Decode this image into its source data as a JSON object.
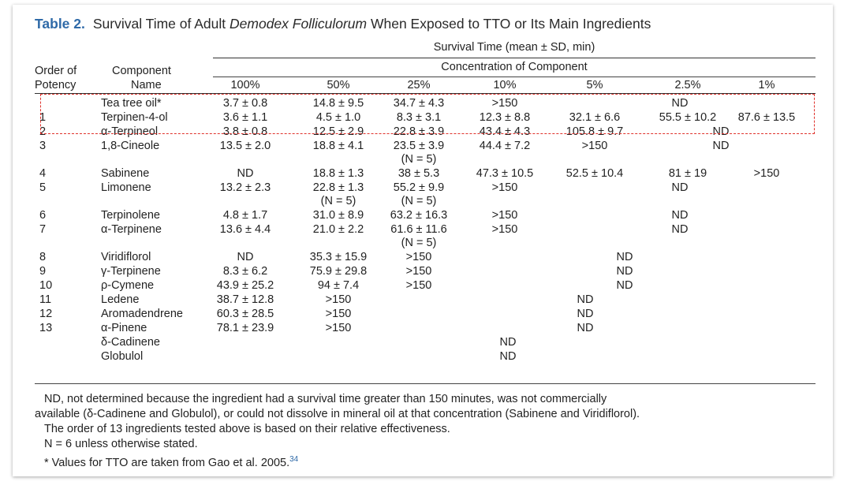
{
  "table": {
    "label": "Table 2.",
    "title_pre": "Survival Time of Adult ",
    "title_italic": "Demodex Folliculorum",
    "title_post": " When Exposed to TTO or Its Main Ingredients",
    "header_survival": "Survival Time (mean ± SD, min)",
    "header_concentration": "Concentration of Component",
    "header_order_line1": "Order of",
    "header_order_line2": "Potency",
    "header_component_line1": "Component",
    "header_component_line2": "Name",
    "concentrations": [
      "100%",
      "50%",
      "25%",
      "10%",
      "5%",
      "2.5%",
      "1%"
    ]
  },
  "rows": [
    {
      "order": "",
      "name": "Tea tree oil*",
      "c100": "3.7 ± 0.8",
      "c50": "14.8 ± 9.5",
      "c25": "34.7 ± 4.3",
      "c10": ">150",
      "c5": "",
      "c2_5": "",
      "c1": "",
      "nd": "ND"
    },
    {
      "order": "1",
      "name": "Terpinen-4-ol",
      "c100": "3.6 ± 1.1",
      "c50": "4.5 ± 1.0",
      "c25": "8.3 ± 3.1",
      "c10": "12.3 ± 8.8",
      "c5": "32.1 ± 6.6",
      "c2_5": "55.5 ± 10.2",
      "c1": "87.6 ± 13.5",
      "nd": ""
    },
    {
      "order": "2",
      "name": "α-Terpineol",
      "c100": "3.8 ± 0.8",
      "c50": "12.5 ± 2.9",
      "c25": "22.8 ± 3.9",
      "c10": "43.4 ± 4.3",
      "c5": "105.8 ± 9.7",
      "c2_5": "",
      "c1": "",
      "nd": "ND"
    },
    {
      "order": "3",
      "name": "1,8-Cineole",
      "c100": "13.5 ± 2.0",
      "c50": "18.8 ± 4.1",
      "c25": "23.5 ± 3.9",
      "c10": "44.4 ± 7.2",
      "c5": ">150",
      "c2_5": "",
      "c1": "",
      "nd": "ND",
      "note25": "(N = 5)"
    },
    {
      "order": "4",
      "name": "Sabinene",
      "c100": "ND",
      "c50": "18.8 ± 1.3",
      "c25": "38 ± 5.3",
      "c10": "47.3 ± 10.5",
      "c5": "52.5 ± 10.4",
      "c2_5": "81 ± 19",
      "c1": ">150",
      "nd": ""
    },
    {
      "order": "5",
      "name": "Limonene",
      "c100": "13.2 ± 2.3",
      "c50": "22.8 ± 1.3",
      "c25": "55.2 ± 9.9",
      "c10": ">150",
      "c5": "",
      "c2_5": "",
      "c1": "",
      "nd": "ND",
      "note50": "(N = 5)",
      "note25": "(N = 5)"
    },
    {
      "order": "6",
      "name": "Terpinolene",
      "c100": "4.8 ± 1.7",
      "c50": "31.0 ± 8.9",
      "c25": "63.2 ± 16.3",
      "c10": ">150",
      "c5": "",
      "c2_5": "",
      "c1": "",
      "nd": "ND"
    },
    {
      "order": "7",
      "name": "α-Terpinene",
      "c100": "13.6 ± 4.4",
      "c50": "21.0 ± 2.2",
      "c25": "61.6 ± 11.6",
      "c10": ">150",
      "c5": "",
      "c2_5": "",
      "c1": "",
      "nd": "ND",
      "note25": "(N = 5)"
    },
    {
      "order": "8",
      "name": "Viridiflorol",
      "c100": "ND",
      "c50": "35.3 ± 15.9",
      "c25": ">150",
      "c10": "",
      "c5": "",
      "c2_5": "",
      "c1": "",
      "nd": "ND"
    },
    {
      "order": "9",
      "name": "γ-Terpinene",
      "c100": "8.3 ± 6.2",
      "c50": "75.9 ± 29.8",
      "c25": ">150",
      "c10": "",
      "c5": "",
      "c2_5": "",
      "c1": "",
      "nd": "ND"
    },
    {
      "order": "10",
      "name": "ρ-Cymene",
      "c100": "43.9 ± 25.2",
      "c50": "94 ± 7.4",
      "c25": ">150",
      "c10": "",
      "c5": "",
      "c2_5": "",
      "c1": "",
      "nd": "ND"
    },
    {
      "order": "11",
      "name": "Ledene",
      "c100": "38.7 ± 12.8",
      "c50": ">150",
      "c25": "",
      "c10": "",
      "c5": "",
      "c2_5": "",
      "c1": "",
      "nd": "ND"
    },
    {
      "order": "12",
      "name": "Aromadendrene",
      "c100": "60.3 ± 28.5",
      "c50": ">150",
      "c25": "",
      "c10": "",
      "c5": "",
      "c2_5": "",
      "c1": "",
      "nd": "ND"
    },
    {
      "order": "13",
      "name": "α-Pinene",
      "c100": "78.1 ± 23.9",
      "c50": ">150",
      "c25": "",
      "c10": "",
      "c5": "",
      "c2_5": "",
      "c1": "",
      "nd": "ND"
    },
    {
      "order": "",
      "name": "δ-Cadinene",
      "c100": "",
      "c50": "",
      "c25": "",
      "c10": "",
      "c5": "",
      "c2_5": "",
      "c1": "",
      "nd": "ND"
    },
    {
      "order": "",
      "name": "Globulol",
      "c100": "",
      "c50": "",
      "c25": "",
      "c10": "",
      "c5": "",
      "c2_5": "",
      "c1": "",
      "nd": "ND"
    }
  ],
  "footnotes": {
    "nd_line1": "ND, not determined because the ingredient had a survival time greater than 150 minutes, was not commercially",
    "nd_line2": "available (δ-Cadinene and Globulol), or could not dissolve in mineral oil at that concentration (Sabinene and Viridiflorol).",
    "order_note": "The order of 13 ingredients tested above is based on their relative effectiveness.",
    "n_note": "N = 6 unless otherwise stated.",
    "tto_note": "* Values for TTO are taken from Gao et al. 2005.",
    "ref": "34"
  },
  "colors": {
    "accent": "#2f6aa8",
    "highlight": "#e0312b"
  }
}
